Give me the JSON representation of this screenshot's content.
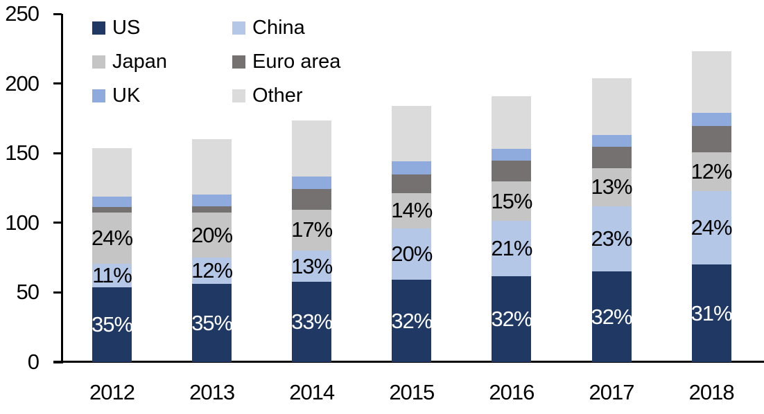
{
  "chart_data": {
    "type": "bar",
    "stacked": true,
    "title": "",
    "categories": [
      "2012",
      "2013",
      "2014",
      "2015",
      "2016",
      "2017",
      "2018"
    ],
    "series": [
      {
        "name": "US",
        "color": "#1f3864",
        "values": [
          53.7,
          56.0,
          57.5,
          59.0,
          61.5,
          65.0,
          70.0
        ],
        "segment_labels": [
          "35%",
          "35%",
          "33%",
          "32%",
          "32%",
          "32%",
          "31%"
        ],
        "label_color": "#ffffff"
      },
      {
        "name": "China",
        "color": "#b4c7e7",
        "values": [
          17.0,
          19.2,
          22.5,
          36.7,
          40.0,
          47.0,
          53.0
        ],
        "segment_labels": [
          "11%",
          "12%",
          "13%",
          "20%",
          "21%",
          "23%",
          "24%"
        ],
        "label_color": "#000000"
      },
      {
        "name": "Japan",
        "color": "#c5c5c5",
        "values": [
          36.8,
          32.0,
          29.5,
          25.8,
          28.0,
          27.0,
          27.5
        ],
        "segment_labels": [
          "24%",
          "20%",
          "17%",
          "14%",
          "15%",
          "13%",
          "12%"
        ],
        "label_color": "#000000"
      },
      {
        "name": "Euro area",
        "color": "#767171",
        "values": [
          3.9,
          4.8,
          15.0,
          13.4,
          15.0,
          15.5,
          19.0
        ],
        "segment_labels": null,
        "label_color": null
      },
      {
        "name": "UK",
        "color": "#8faadc",
        "values": [
          7.5,
          8.3,
          8.8,
          9.1,
          8.5,
          8.5,
          9.5
        ],
        "segment_labels": null,
        "label_color": null
      },
      {
        "name": "Other",
        "color": "#dbdbdb",
        "values": [
          34.6,
          39.7,
          40.2,
          40.0,
          38.0,
          41.0,
          44.0
        ],
        "segment_labels": null,
        "label_color": null
      }
    ],
    "totals": [
      153.5,
      160.0,
      173.5,
      184.0,
      191.0,
      204.0,
      223.0
    ],
    "y_axis": {
      "tick_labels": [
        "0",
        "50",
        "100",
        "150",
        "200",
        "250"
      ],
      "tick_values": [
        0,
        50,
        100,
        150,
        200,
        250
      ],
      "min": 0,
      "max": 250
    },
    "legend": {
      "position": "top-left",
      "columns": 2,
      "entries": [
        "US",
        "China",
        "Japan",
        "Euro area",
        "UK",
        "Other"
      ]
    },
    "grid": false,
    "axis_color": "#000000",
    "background_color": "#ffffff"
  }
}
